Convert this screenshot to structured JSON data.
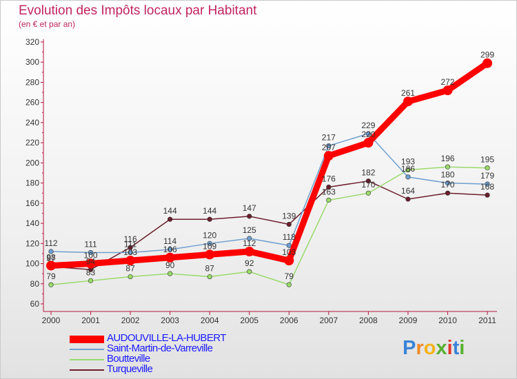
{
  "chart_data": {
    "type": "line",
    "title": "Evolution des Impôts locaux par Habitant",
    "subtitle": "(en € et par an)",
    "categories": [
      "2000",
      "2001",
      "2002",
      "2003",
      "2004",
      "2005",
      "2006",
      "2007",
      "2008",
      "2009",
      "2010",
      "2011"
    ],
    "ylim": [
      60,
      320
    ],
    "yticks": [
      60,
      80,
      100,
      120,
      140,
      160,
      180,
      200,
      220,
      240,
      260,
      280,
      300,
      320
    ],
    "grid": false,
    "legend_position": "bottom-left",
    "series": [
      {
        "name": "Turqueville",
        "color": "#6b1e2c",
        "values": [
          97,
          94,
          116,
          144,
          144,
          147,
          139,
          176,
          182,
          164,
          170,
          168
        ],
        "labels": [
          "97",
          "94",
          "116",
          "144",
          "144",
          "147",
          "139",
          "176",
          "182",
          "164",
          "170",
          "168"
        ]
      },
      {
        "name": "Boutteville",
        "color": "#9ada6a",
        "values": [
          79,
          83,
          87,
          90,
          87,
          92,
          79,
          163,
          170,
          193,
          196,
          195
        ],
        "labels": [
          "79",
          "83",
          "87",
          "90",
          "87",
          "92",
          "79",
          "163",
          "170",
          "193",
          "196",
          "195"
        ]
      },
      {
        "name": "Saint-Martin-de-Varreville",
        "color": "#6f9fcf",
        "values": [
          112,
          111,
          111,
          114,
          120,
          125,
          118,
          217,
          229,
          186,
          180,
          179
        ],
        "labels": [
          "112",
          "111",
          "111",
          "114",
          "120",
          "125",
          "118",
          "217",
          "229",
          "186",
          "180",
          "179"
        ]
      },
      {
        "name": "AUDOUVILLE-LA-HUBERT",
        "color": "#ff0000",
        "values": [
          98,
          100,
          103,
          106,
          109,
          112,
          103,
          207,
          220,
          261,
          272,
          299
        ],
        "labels": [
          "98",
          "100",
          "103",
          "106",
          "109",
          "112",
          "103",
          "207",
          "220",
          "261",
          "272",
          "299"
        ]
      }
    ]
  },
  "legend": [
    {
      "label": "AUDOUVILLE-LA-HUBERT",
      "color": "#ff0000"
    },
    {
      "label": "Saint-Martin-de-Varreville",
      "color": "#6f9fcf"
    },
    {
      "label": "Boutteville",
      "color": "#9ada6a"
    },
    {
      "label": "Turqueville",
      "color": "#6b1e2c"
    }
  ],
  "brand": {
    "letters": [
      "P",
      "r",
      "o",
      "x",
      "i",
      "t",
      "i"
    ],
    "colors": [
      "#3a84d8",
      "#f08a24",
      "#f5b21a",
      "#58b030",
      "#e4342c",
      "#3a84d8",
      "#58b030"
    ]
  }
}
